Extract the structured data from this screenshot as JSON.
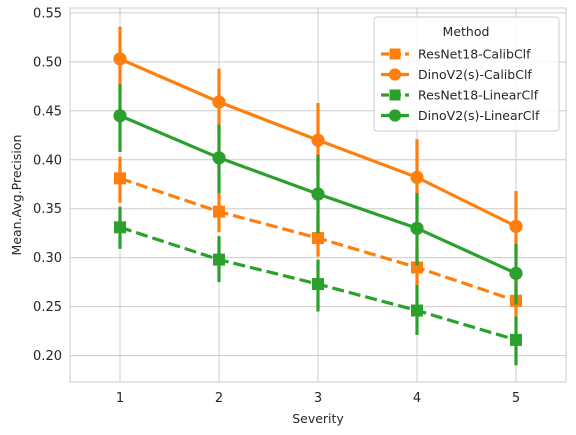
{
  "chart_data": {
    "type": "line",
    "title": "",
    "xlabel": "Severity",
    "ylabel": "Mean.Avg.Precision",
    "categories": [
      "1",
      "2",
      "3",
      "4",
      "5"
    ],
    "ylim": [
      0.173,
      0.555
    ],
    "yticks": [
      "0.20",
      "0.25",
      "0.30",
      "0.35",
      "0.40",
      "0.45",
      "0.50",
      "0.55"
    ],
    "grid": true,
    "legend": {
      "title": "Method",
      "position": "top-right"
    },
    "series": [
      {
        "name": "ResNet18-CalibClf",
        "color": "#ff7f0e",
        "dash": true,
        "marker": "square",
        "values": [
          0.381,
          0.347,
          0.32,
          0.29,
          0.256
        ],
        "err_low": [
          0.356,
          0.326,
          0.301,
          0.27,
          0.24
        ],
        "err_high": [
          0.403,
          0.366,
          0.34,
          0.31,
          0.274
        ]
      },
      {
        "name": "DinoV2(s)-CalibClf",
        "color": "#ff7f0e",
        "dash": false,
        "marker": "circle",
        "values": [
          0.503,
          0.459,
          0.42,
          0.382,
          0.332
        ],
        "err_low": [
          0.471,
          0.428,
          0.386,
          0.347,
          0.3
        ],
        "err_high": [
          0.536,
          0.493,
          0.458,
          0.421,
          0.368
        ]
      },
      {
        "name": "ResNet18-LinearClf",
        "color": "#2ca02c",
        "dash": true,
        "marker": "square",
        "values": [
          0.331,
          0.298,
          0.273,
          0.246,
          0.216
        ],
        "err_low": [
          0.309,
          0.275,
          0.245,
          0.221,
          0.19
        ],
        "err_high": [
          0.352,
          0.322,
          0.298,
          0.272,
          0.24
        ]
      },
      {
        "name": "DinoV2(s)-LinearClf",
        "color": "#2ca02c",
        "dash": false,
        "marker": "circle",
        "values": [
          0.445,
          0.402,
          0.365,
          0.33,
          0.284
        ],
        "err_low": [
          0.408,
          0.366,
          0.325,
          0.292,
          0.252
        ],
        "err_high": [
          0.477,
          0.436,
          0.405,
          0.366,
          0.314
        ]
      }
    ]
  }
}
